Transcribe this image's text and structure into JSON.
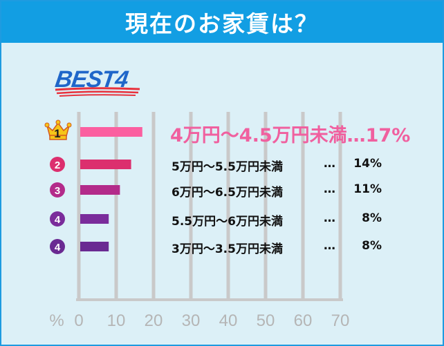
{
  "header": {
    "title": "現在のお家賃は？"
  },
  "best_label": "BEST4",
  "chart_data": {
    "type": "bar",
    "orientation": "horizontal",
    "title": "現在のお家賃は？",
    "xlabel": "%",
    "xlim": [
      0,
      70
    ],
    "xticks": [
      "0",
      "10",
      "20",
      "30",
      "40",
      "50",
      "60",
      "70"
    ],
    "grid": true,
    "ranks": [
      "1",
      "2",
      "3",
      "4",
      "4"
    ],
    "categories": [
      "4万円〜4.5万円未満",
      "5万円〜5.5万円未満",
      "6万円〜6.5万円未満",
      "5.5万円〜6万円未満",
      "3万円〜3.5万円未満"
    ],
    "values": [
      17,
      14,
      11,
      8,
      8
    ],
    "value_labels": [
      "17%",
      "14%",
      "11%",
      "8%",
      "8%"
    ],
    "colors": [
      "#fb5fa0",
      "#dc2f6e",
      "#b32b8a",
      "#7a2c9b",
      "#6a2a92"
    ],
    "separator": "…"
  }
}
